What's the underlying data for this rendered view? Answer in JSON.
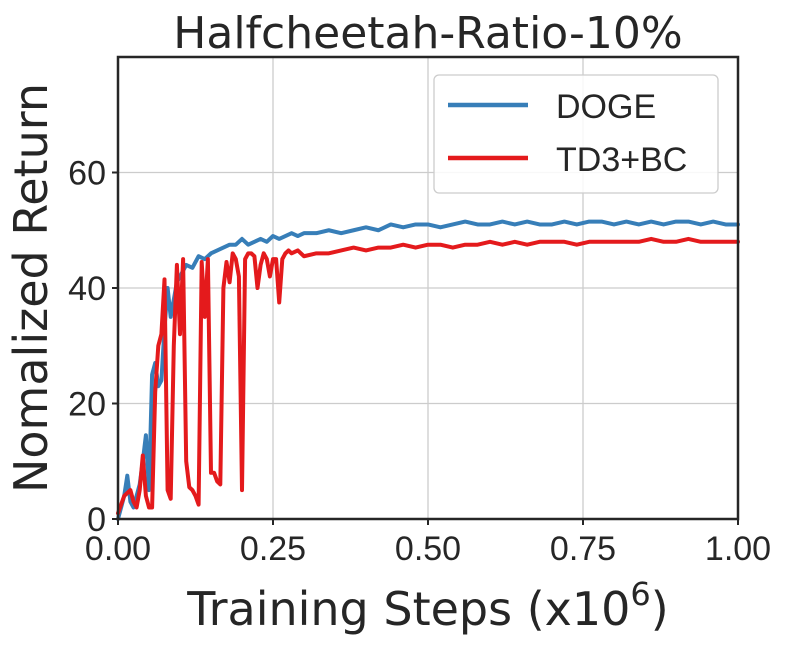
{
  "chart_data": {
    "type": "line",
    "title": "Halfcheetah-Ratio-10%",
    "xlabel": "Training Steps (x",
    "xlabel_exponent_base": "10",
    "xlabel_exponent": "6",
    "xlabel_suffix": ")",
    "ylabel": "Nomalized Return",
    "xlim": [
      0,
      1.0
    ],
    "ylim": [
      0,
      80
    ],
    "grid": true,
    "legend_position": "top-right",
    "xticks": [
      0,
      0.25,
      0.5,
      0.75,
      1.0
    ],
    "xtick_labels": [
      "0.00",
      "0.25",
      "0.50",
      "0.75",
      "1.00"
    ],
    "yticks": [
      0,
      20,
      40,
      60
    ],
    "ytick_labels": [
      "0",
      "20",
      "40",
      "60"
    ],
    "series": [
      {
        "name": "DOGE",
        "color": "#377eb8",
        "x": [
          0.0,
          0.005,
          0.01,
          0.015,
          0.02,
          0.025,
          0.03,
          0.035,
          0.04,
          0.045,
          0.05,
          0.055,
          0.06,
          0.065,
          0.07,
          0.075,
          0.08,
          0.085,
          0.09,
          0.095,
          0.1,
          0.11,
          0.12,
          0.13,
          0.14,
          0.15,
          0.16,
          0.17,
          0.18,
          0.19,
          0.2,
          0.21,
          0.22,
          0.23,
          0.24,
          0.25,
          0.26,
          0.27,
          0.28,
          0.29,
          0.3,
          0.32,
          0.34,
          0.36,
          0.38,
          0.4,
          0.42,
          0.44,
          0.46,
          0.48,
          0.5,
          0.52,
          0.54,
          0.56,
          0.58,
          0.6,
          0.62,
          0.64,
          0.66,
          0.68,
          0.7,
          0.72,
          0.74,
          0.76,
          0.78,
          0.8,
          0.82,
          0.84,
          0.86,
          0.88,
          0.9,
          0.92,
          0.94,
          0.96,
          0.98,
          1.0
        ],
        "values": [
          0,
          2,
          4,
          7.5,
          3,
          2,
          4,
          6,
          10,
          14.5,
          5,
          25,
          27,
          23,
          24,
          33,
          40,
          35,
          38,
          41,
          42,
          44,
          43.5,
          45.5,
          45,
          46,
          46.5,
          47,
          47.5,
          47.5,
          48.5,
          47.5,
          48,
          48.5,
          48,
          49,
          48.5,
          49,
          49.5,
          49,
          49.5,
          49.5,
          50,
          49.5,
          50,
          50.5,
          50,
          51,
          50.5,
          51,
          51,
          50.5,
          51,
          51.5,
          51,
          51,
          51.5,
          51,
          51.5,
          51,
          51,
          51.5,
          51,
          51.5,
          51.5,
          51,
          51.5,
          51,
          51.5,
          51,
          51.5,
          51.5,
          51,
          51.5,
          51,
          51
        ]
      },
      {
        "name": "TD3+BC",
        "color": "#e41a1c",
        "x": [
          0.0,
          0.01,
          0.02,
          0.025,
          0.03,
          0.035,
          0.04,
          0.045,
          0.05,
          0.055,
          0.06,
          0.065,
          0.07,
          0.075,
          0.08,
          0.085,
          0.09,
          0.095,
          0.1,
          0.105,
          0.11,
          0.115,
          0.12,
          0.125,
          0.13,
          0.135,
          0.14,
          0.145,
          0.15,
          0.155,
          0.16,
          0.165,
          0.17,
          0.175,
          0.18,
          0.185,
          0.19,
          0.195,
          0.2,
          0.205,
          0.21,
          0.215,
          0.22,
          0.225,
          0.23,
          0.235,
          0.24,
          0.245,
          0.25,
          0.255,
          0.26,
          0.265,
          0.27,
          0.275,
          0.28,
          0.29,
          0.3,
          0.32,
          0.34,
          0.36,
          0.38,
          0.4,
          0.42,
          0.44,
          0.46,
          0.48,
          0.5,
          0.52,
          0.54,
          0.56,
          0.58,
          0.6,
          0.62,
          0.64,
          0.66,
          0.68,
          0.7,
          0.72,
          0.74,
          0.76,
          0.78,
          0.8,
          0.82,
          0.84,
          0.86,
          0.88,
          0.9,
          0.92,
          0.94,
          0.96,
          0.98,
          1.0
        ],
        "values": [
          1,
          4,
          5,
          3,
          2,
          5,
          11,
          4,
          2,
          2,
          22,
          30,
          32,
          41.5,
          5,
          3.5,
          30,
          44,
          32,
          45,
          10,
          5.5,
          5,
          4,
          2.5,
          44.5,
          35,
          45,
          8,
          8,
          6.5,
          6,
          40,
          44.5,
          41,
          46,
          45,
          42,
          5,
          45,
          46,
          46,
          45.5,
          40,
          44,
          46,
          45,
          42,
          45,
          45,
          37.5,
          45,
          46,
          46.5,
          46,
          46.5,
          45.5,
          46,
          46,
          46.5,
          47,
          46.5,
          47,
          47,
          47.5,
          47,
          47.5,
          47.5,
          47,
          47.5,
          47.5,
          48,
          47.5,
          48,
          47.5,
          48,
          48,
          48,
          47.5,
          48,
          48,
          48,
          48,
          48,
          48.5,
          48,
          48,
          48.5,
          48,
          48,
          48,
          48
        ]
      }
    ]
  }
}
